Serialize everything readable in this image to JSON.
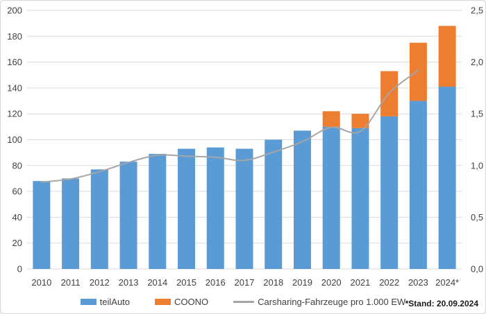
{
  "chart_data": {
    "type": "bar",
    "subtype": "stacked-column-with-line",
    "title": "",
    "categories": [
      "2010",
      "2011",
      "2012",
      "2013",
      "2014",
      "2015",
      "2016",
      "2017",
      "2018",
      "2019",
      "2020",
      "2021",
      "2022",
      "2023",
      "2024*"
    ],
    "series": [
      {
        "name": "teilAuto",
        "type": "bar",
        "axis": "left",
        "color": "#5B9BD5",
        "values": [
          68,
          70,
          77,
          83,
          89,
          93,
          94,
          93,
          100,
          107,
          110,
          109,
          118,
          130,
          141
        ]
      },
      {
        "name": "COONO",
        "type": "bar",
        "axis": "left",
        "color": "#ED7D31",
        "values": [
          0,
          0,
          0,
          0,
          0,
          0,
          0,
          0,
          0,
          0,
          12,
          11,
          35,
          45,
          47
        ]
      },
      {
        "name": "Carsharing-Fahrzeuge pro 1.000 EW",
        "type": "line",
        "axis": "right",
        "color": "#A5A5A5",
        "values": [
          0.84,
          0.87,
          0.94,
          1.03,
          1.1,
          1.09,
          1.08,
          1.05,
          1.13,
          1.23,
          1.37,
          1.33,
          1.7,
          1.92,
          null
        ]
      }
    ],
    "stacked_totals": [
      68,
      70,
      77,
      83,
      89,
      93,
      94,
      93,
      100,
      107,
      122,
      120,
      153,
      175,
      188
    ],
    "left_axis": {
      "min": 0,
      "max": 200,
      "step": 20,
      "tick_labels": [
        "0",
        "20",
        "40",
        "60",
        "80",
        "100",
        "120",
        "140",
        "160",
        "180",
        "200"
      ]
    },
    "right_axis": {
      "min": 0,
      "max": 2.5,
      "step": 0.5,
      "tick_labels": [
        "0,0",
        "0,5",
        "1,0",
        "1,5",
        "2,0",
        "2,5"
      ]
    },
    "grid": true,
    "legend_position": "bottom",
    "footnote": "*Stand: 20.09.2024"
  },
  "legend": {
    "items": [
      {
        "label": "teilAuto",
        "swatch": "rect",
        "color": "#5B9BD5"
      },
      {
        "label": "COONO",
        "swatch": "rect",
        "color": "#ED7D31"
      },
      {
        "label": "Carsharing-Fahrzeuge pro 1.000 EW",
        "swatch": "line",
        "color": "#A5A5A5"
      }
    ]
  },
  "colors": {
    "grid": "#D9D9D9",
    "axis_text": "#404040",
    "bar_blue": "#5B9BD5",
    "bar_orange": "#ED7D31",
    "line_gray": "#A5A5A5",
    "background": "#FFFFFF",
    "border": "#D7D7DA"
  }
}
